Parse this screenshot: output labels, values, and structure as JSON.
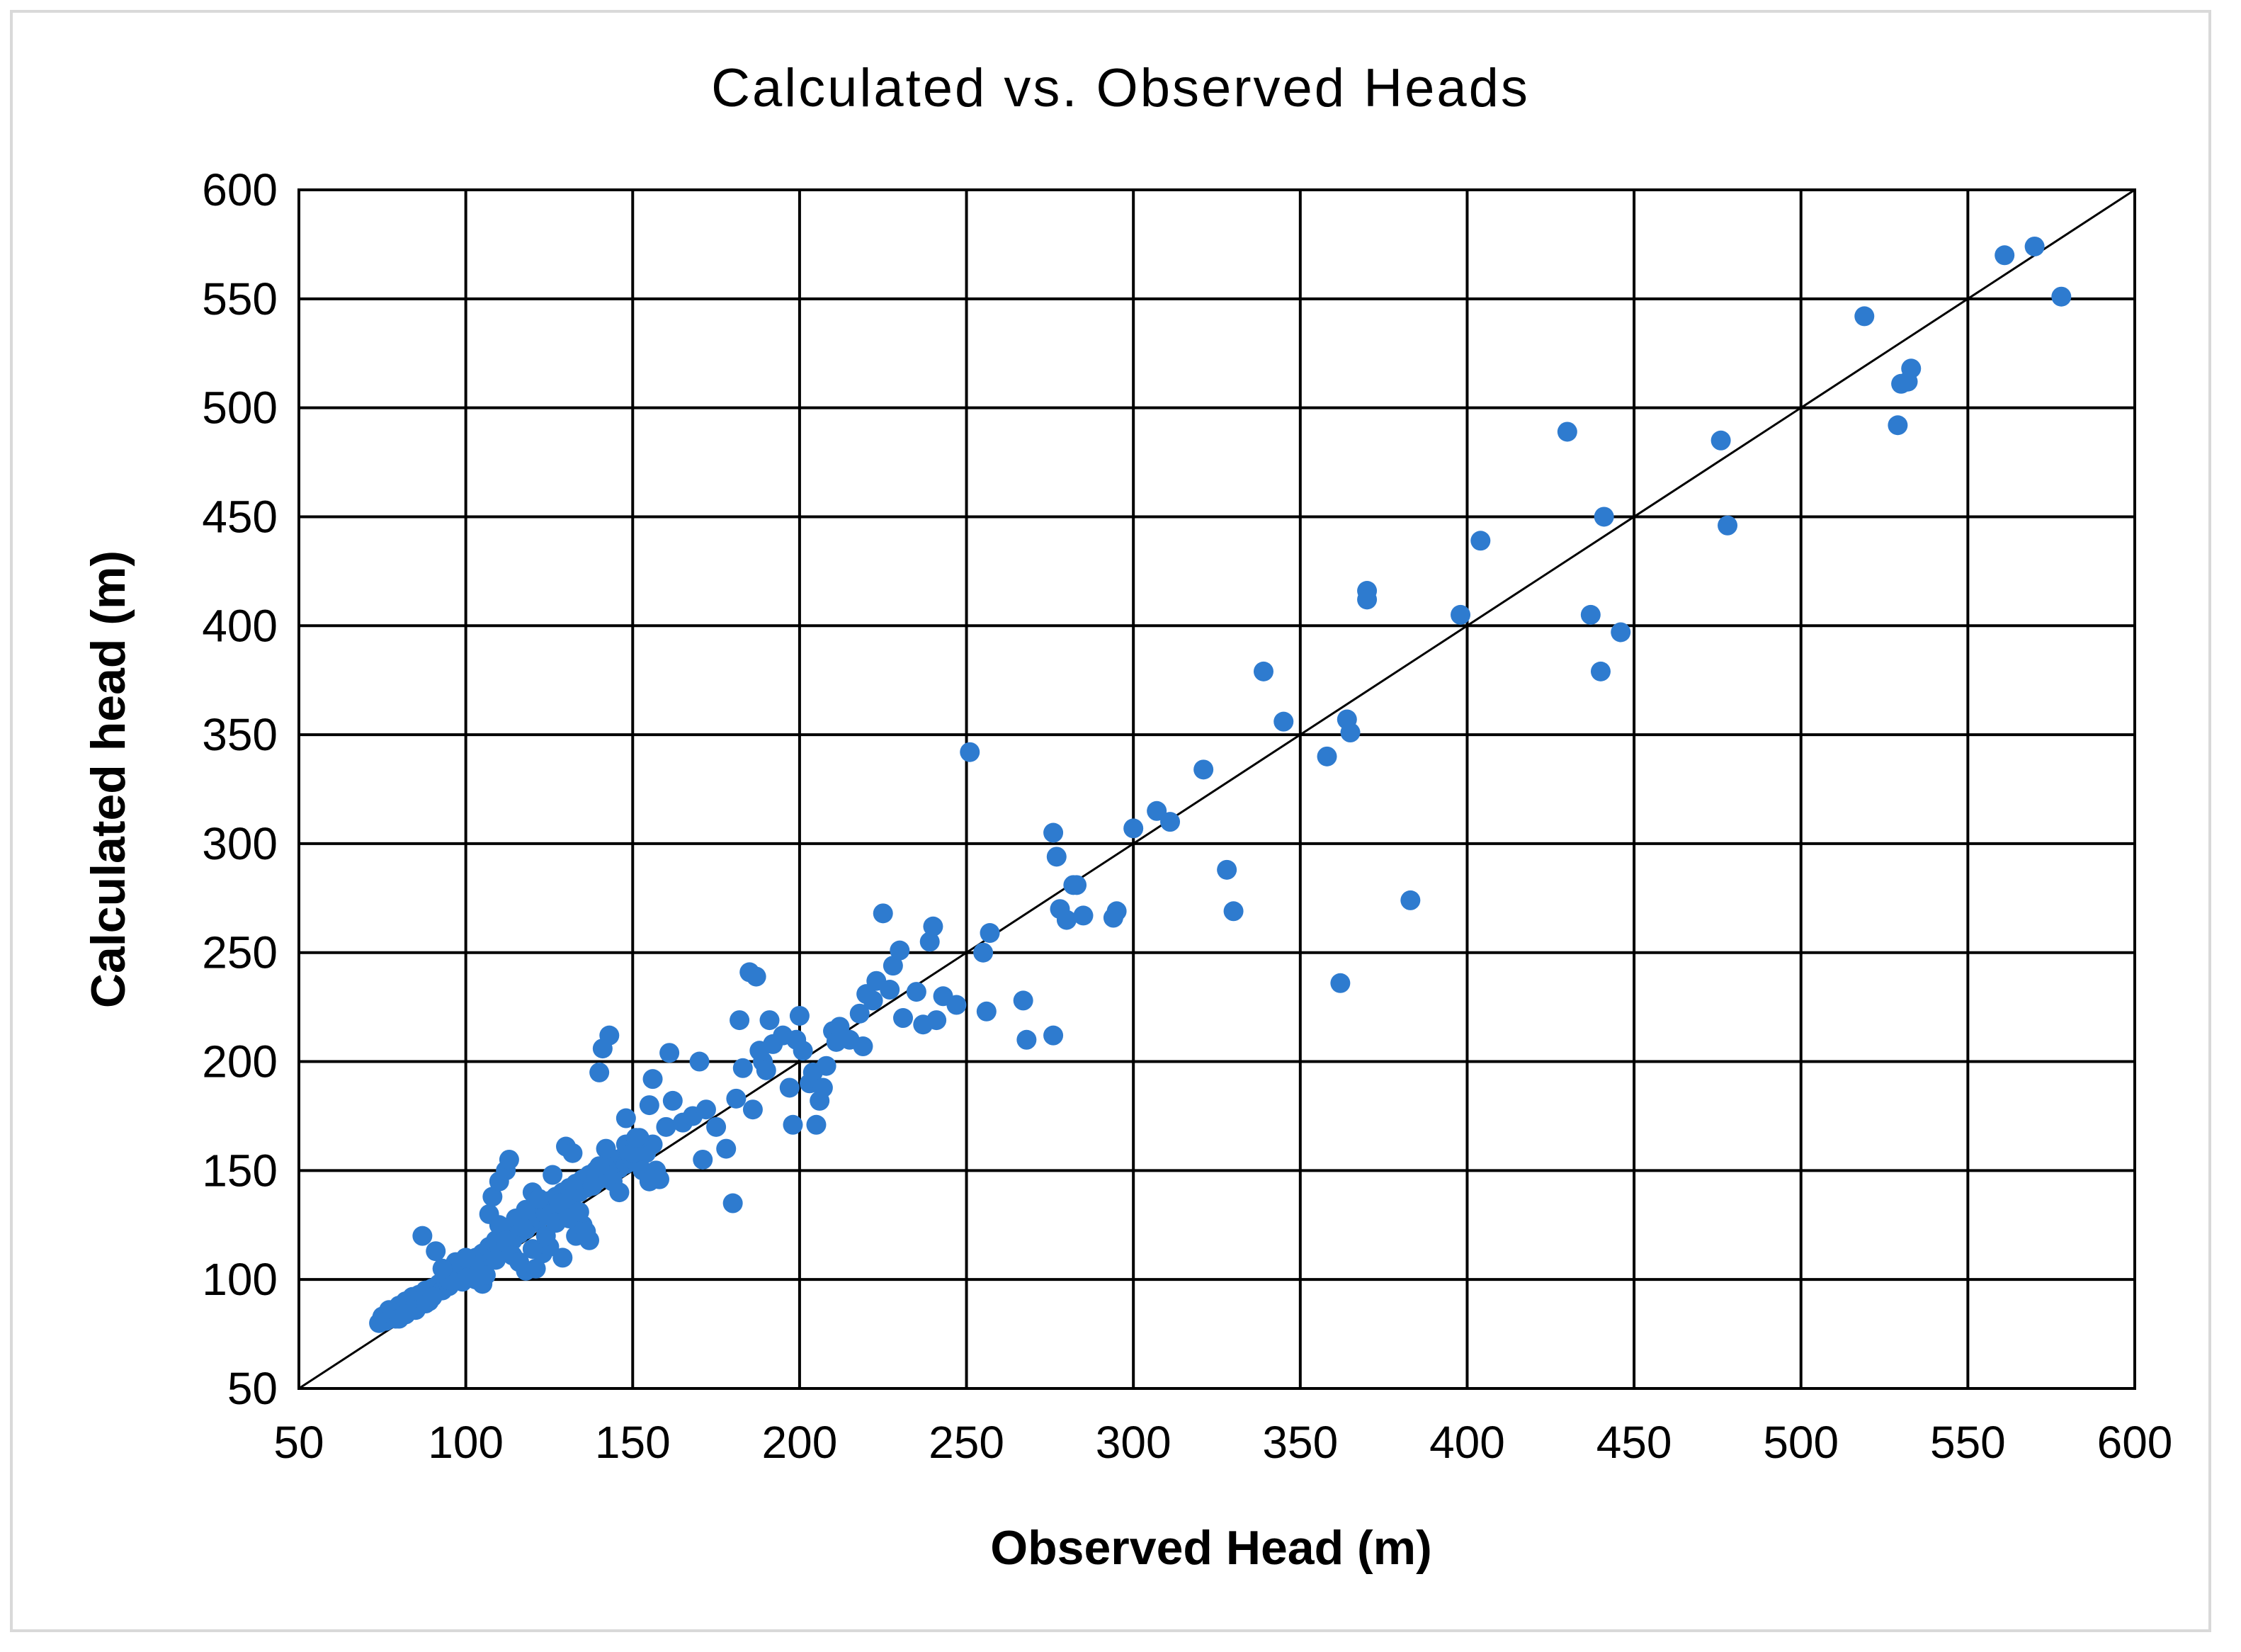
{
  "chart_data": {
    "type": "scatter",
    "title": "Calculated vs. Observed Heads",
    "xlabel": "Observed Head (m)",
    "ylabel": "Calculated head (m)",
    "xlim": [
      50,
      600
    ],
    "ylim": [
      50,
      600
    ],
    "xticks": [
      50,
      100,
      150,
      200,
      250,
      300,
      350,
      400,
      450,
      500,
      550,
      600
    ],
    "yticks": [
      50,
      100,
      150,
      200,
      250,
      300,
      350,
      400,
      450,
      500,
      550,
      600
    ],
    "xtick_labels": [
      "50",
      "100",
      "150",
      "200",
      "250",
      "300",
      "350",
      "400",
      "450",
      "500",
      "550",
      "600"
    ],
    "ytick_labels": [
      "50",
      "100",
      "150",
      "200",
      "250",
      "300",
      "350",
      "400",
      "450",
      "500",
      "550",
      "600"
    ],
    "grid": true,
    "legend": "none",
    "reference_line": {
      "x": [
        50,
        600
      ],
      "y": [
        50,
        600
      ]
    },
    "series": [
      {
        "color": "#2e7bcf",
        "points": [
          [
            74,
            80
          ],
          [
            75,
            83
          ],
          [
            76,
            81
          ],
          [
            77,
            86
          ],
          [
            78,
            84
          ],
          [
            79,
            82
          ],
          [
            80,
            88
          ],
          [
            81,
            85
          ],
          [
            82,
            90
          ],
          [
            83,
            87
          ],
          [
            84,
            92
          ],
          [
            85,
            89
          ],
          [
            86,
            93
          ],
          [
            87,
            91
          ],
          [
            88,
            95
          ],
          [
            89,
            90
          ],
          [
            90,
            96
          ],
          [
            91,
            94
          ],
          [
            92,
            98
          ],
          [
            93,
            95
          ],
          [
            94,
            100
          ],
          [
            95,
            97
          ],
          [
            96,
            99
          ],
          [
            97,
            103
          ],
          [
            98,
            101
          ],
          [
            99,
            105
          ],
          [
            100,
            102
          ],
          [
            101,
            108
          ],
          [
            102,
            104
          ],
          [
            103,
            110
          ],
          [
            104,
            106
          ],
          [
            105,
            112
          ],
          [
            106,
            108
          ],
          [
            107,
            115
          ],
          [
            108,
            110
          ],
          [
            109,
            118
          ],
          [
            110,
            113
          ],
          [
            111,
            120
          ],
          [
            112,
            116
          ],
          [
            113,
            122
          ],
          [
            114,
            118
          ],
          [
            115,
            125
          ],
          [
            116,
            121
          ],
          [
            117,
            127
          ],
          [
            118,
            123
          ],
          [
            119,
            129
          ],
          [
            120,
            126
          ],
          [
            121,
            132
          ],
          [
            122,
            128
          ],
          [
            123,
            134
          ],
          [
            124,
            130
          ],
          [
            125,
            136
          ],
          [
            126,
            132
          ],
          [
            127,
            138
          ],
          [
            128,
            134
          ],
          [
            129,
            140
          ],
          [
            130,
            136
          ],
          [
            131,
            142
          ],
          [
            132,
            138
          ],
          [
            133,
            144
          ],
          [
            134,
            140
          ],
          [
            135,
            146
          ],
          [
            136,
            142
          ],
          [
            137,
            148
          ],
          [
            138,
            144
          ],
          [
            139,
            150
          ],
          [
            140,
            146
          ],
          [
            141,
            151
          ],
          [
            142,
            148
          ],
          [
            143,
            153
          ],
          [
            144,
            150
          ],
          [
            145,
            155
          ],
          [
            146,
            151
          ],
          [
            147,
            156
          ],
          [
            148,
            153
          ],
          [
            149,
            158
          ],
          [
            150,
            155
          ],
          [
            152,
            160
          ],
          [
            154,
            158
          ],
          [
            156,
            162
          ],
          [
            80,
            82
          ],
          [
            82,
            84
          ],
          [
            85,
            86
          ],
          [
            88,
            89
          ],
          [
            90,
            92
          ],
          [
            95,
            100
          ],
          [
            97,
            108
          ],
          [
            100,
            110
          ],
          [
            103,
            100
          ],
          [
            105,
            98
          ],
          [
            107,
            130
          ],
          [
            108,
            138
          ],
          [
            110,
            145
          ],
          [
            112,
            150
          ],
          [
            113,
            155
          ],
          [
            115,
            128
          ],
          [
            117,
            124
          ],
          [
            118,
            132
          ],
          [
            120,
            140
          ],
          [
            122,
            137
          ],
          [
            123,
            112
          ],
          [
            125,
            115
          ],
          [
            126,
            148
          ],
          [
            128,
            135
          ],
          [
            130,
            161
          ],
          [
            132,
            158
          ],
          [
            133,
            120
          ],
          [
            135,
            125
          ],
          [
            137,
            118
          ],
          [
            138,
            143
          ],
          [
            140,
            152
          ],
          [
            142,
            160
          ],
          [
            144,
            145
          ],
          [
            146,
            140
          ],
          [
            148,
            162
          ],
          [
            150,
            158
          ],
          [
            152,
            165
          ],
          [
            153,
            150
          ],
          [
            155,
            145
          ],
          [
            157,
            150
          ],
          [
            110,
            125
          ],
          [
            112,
            118
          ],
          [
            114,
            111
          ],
          [
            116,
            108
          ],
          [
            118,
            104
          ],
          [
            120,
            114
          ],
          [
            124,
            120
          ],
          [
            127,
            126
          ],
          [
            131,
            128
          ],
          [
            134,
            131
          ],
          [
            87,
            120
          ],
          [
            91,
            113
          ],
          [
            93,
            105
          ],
          [
            99,
            99
          ],
          [
            106,
            102
          ],
          [
            109,
            109
          ],
          [
            121,
            105
          ],
          [
            129,
            110
          ],
          [
            136,
            122
          ],
          [
            140,
            195
          ],
          [
            141,
            206
          ],
          [
            143,
            212
          ],
          [
            148,
            174
          ],
          [
            151,
            165
          ],
          [
            155,
            180
          ],
          [
            156,
            192
          ],
          [
            158,
            146
          ],
          [
            160,
            170
          ],
          [
            161,
            204
          ],
          [
            162,
            182
          ],
          [
            165,
            172
          ],
          [
            168,
            175
          ],
          [
            170,
            200
          ],
          [
            171,
            155
          ],
          [
            172,
            178
          ],
          [
            175,
            170
          ],
          [
            178,
            160
          ],
          [
            180,
            135
          ],
          [
            181,
            183
          ],
          [
            182,
            219
          ],
          [
            183,
            197
          ],
          [
            185,
            241
          ],
          [
            186,
            178
          ],
          [
            187,
            239
          ],
          [
            188,
            205
          ],
          [
            189,
            200
          ],
          [
            190,
            196
          ],
          [
            191,
            219
          ],
          [
            192,
            208
          ],
          [
            195,
            212
          ],
          [
            197,
            188
          ],
          [
            198,
            171
          ],
          [
            199,
            210
          ],
          [
            200,
            221
          ],
          [
            201,
            205
          ],
          [
            203,
            190
          ],
          [
            204,
            195
          ],
          [
            205,
            171
          ],
          [
            206,
            182
          ],
          [
            207,
            188
          ],
          [
            208,
            198
          ],
          [
            210,
            214
          ],
          [
            211,
            209
          ],
          [
            212,
            216
          ],
          [
            215,
            210
          ],
          [
            218,
            222
          ],
          [
            219,
            207
          ],
          [
            220,
            231
          ],
          [
            222,
            228
          ],
          [
            223,
            237
          ],
          [
            225,
            268
          ],
          [
            227,
            233
          ],
          [
            228,
            244
          ],
          [
            230,
            251
          ],
          [
            231,
            220
          ],
          [
            235,
            232
          ],
          [
            237,
            217
          ],
          [
            239,
            255
          ],
          [
            240,
            262
          ],
          [
            241,
            219
          ],
          [
            243,
            230
          ],
          [
            247,
            226
          ],
          [
            251,
            342
          ],
          [
            255,
            250
          ],
          [
            256,
            223
          ],
          [
            257,
            259
          ],
          [
            267,
            228
          ],
          [
            268,
            210
          ],
          [
            276,
            305
          ],
          [
            276,
            212
          ],
          [
            277,
            294
          ],
          [
            278,
            270
          ],
          [
            280,
            265
          ],
          [
            282,
            281
          ],
          [
            283,
            281
          ],
          [
            285,
            267
          ],
          [
            294,
            266
          ],
          [
            295,
            269
          ],
          [
            300,
            307
          ],
          [
            307,
            315
          ],
          [
            311,
            310
          ],
          [
            321,
            334
          ],
          [
            328,
            288
          ],
          [
            330,
            269
          ],
          [
            339,
            379
          ],
          [
            345,
            356
          ],
          [
            358,
            340
          ],
          [
            362,
            236
          ],
          [
            364,
            357
          ],
          [
            365,
            351
          ],
          [
            370,
            416
          ],
          [
            370,
            412
          ],
          [
            383,
            274
          ],
          [
            398,
            405
          ],
          [
            404,
            439
          ],
          [
            430,
            489
          ],
          [
            437,
            405
          ],
          [
            440,
            379
          ],
          [
            441,
            450
          ],
          [
            446,
            397
          ],
          [
            476,
            485
          ],
          [
            478,
            446
          ],
          [
            519,
            542
          ],
          [
            529,
            492
          ],
          [
            530,
            511
          ],
          [
            532,
            512
          ],
          [
            533,
            518
          ],
          [
            561,
            570
          ],
          [
            570,
            574
          ],
          [
            578,
            551
          ]
        ]
      }
    ]
  }
}
